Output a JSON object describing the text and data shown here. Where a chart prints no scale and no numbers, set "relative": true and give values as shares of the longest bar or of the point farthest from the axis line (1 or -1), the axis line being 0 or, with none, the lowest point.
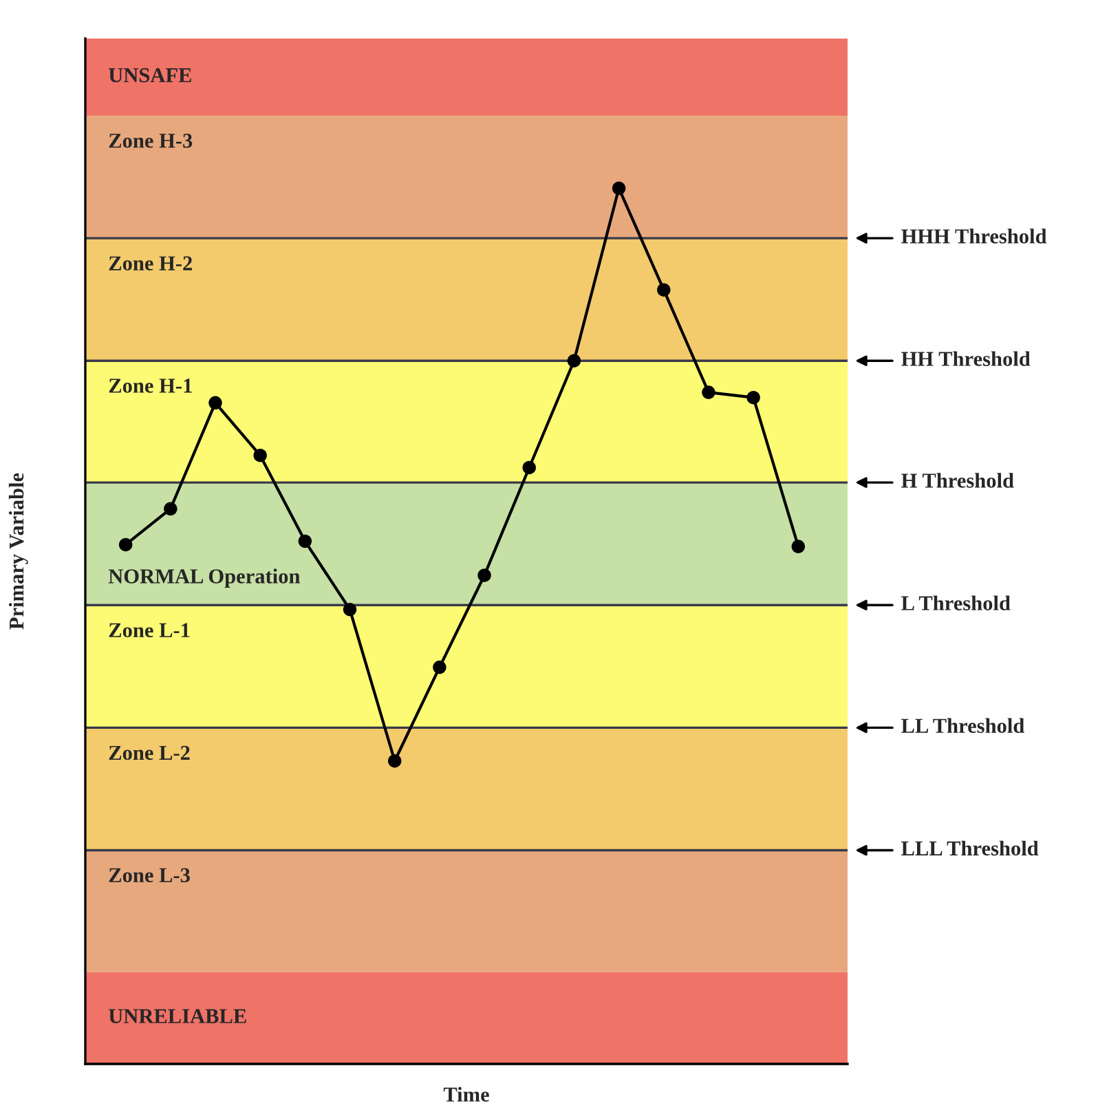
{
  "chart_data": {
    "type": "line",
    "relative": true,
    "xlabel": "Time",
    "ylabel": "Primary Variable",
    "categories": [
      null,
      null,
      null,
      null,
      null,
      null,
      null,
      null,
      null,
      null,
      null,
      null,
      null,
      null,
      null,
      null
    ],
    "series": [
      {
        "color": "#000000",
        "values": [
          0.593,
          0.634,
          0.755,
          0.695,
          0.597,
          0.519,
          0.346,
          0.453,
          0.558,
          0.681,
          0.803,
          1.0,
          0.884,
          0.767,
          0.761,
          0.591
        ]
      }
    ],
    "marker": "circle",
    "line_style": "solid",
    "bands": [
      {
        "axis": "y",
        "from": 1.083,
        "to": 1.171,
        "label": "UNSAFE",
        "color": "#f07368"
      },
      {
        "axis": "y",
        "from": 0.943,
        "to": 1.083,
        "label": "Zone H-3",
        "color": "#e8a87e"
      },
      {
        "axis": "y",
        "from": 0.803,
        "to": 0.943,
        "label": "Zone H-2",
        "color": "#f4cb6c"
      },
      {
        "axis": "y",
        "from": 0.664,
        "to": 0.803,
        "label": "Zone H-1",
        "color": "#fdfb74"
      },
      {
        "axis": "y",
        "from": 0.524,
        "to": 0.664,
        "label": "NORMAL Operation",
        "color": "#c6e0a5"
      },
      {
        "axis": "y",
        "from": 0.384,
        "to": 0.524,
        "label": "Zone L-1",
        "color": "#fdfb74"
      },
      {
        "axis": "y",
        "from": 0.244,
        "to": 0.384,
        "label": "Zone L-2",
        "color": "#f4cb6c"
      },
      {
        "axis": "y",
        "from": 0.105,
        "to": 0.244,
        "label": "Zone L-3",
        "color": "#e8a87e"
      },
      {
        "axis": "y",
        "from": 0.0,
        "to": 0.105,
        "label": "UNRELIABLE",
        "color": "#f07368"
      }
    ],
    "ref_lines": [
      {
        "axis": "y",
        "value": 0.943,
        "label": "HHH Threshold",
        "color": "#3a3a4a",
        "line_style": "solid"
      },
      {
        "axis": "y",
        "value": 0.803,
        "label": "HH Threshold",
        "color": "#3a3a4a",
        "line_style": "solid"
      },
      {
        "axis": "y",
        "value": 0.664,
        "label": "H Threshold",
        "color": "#3a3a4a",
        "line_style": "solid"
      },
      {
        "axis": "y",
        "value": 0.524,
        "label": "L Threshold",
        "color": "#3a3a4a",
        "line_style": "solid"
      },
      {
        "axis": "y",
        "value": 0.384,
        "label": "LL Threshold",
        "color": "#3a3a4a",
        "line_style": "solid"
      },
      {
        "axis": "y",
        "value": 0.244,
        "label": "LLL Threshold",
        "color": "#3a3a4a",
        "line_style": "solid"
      }
    ]
  }
}
